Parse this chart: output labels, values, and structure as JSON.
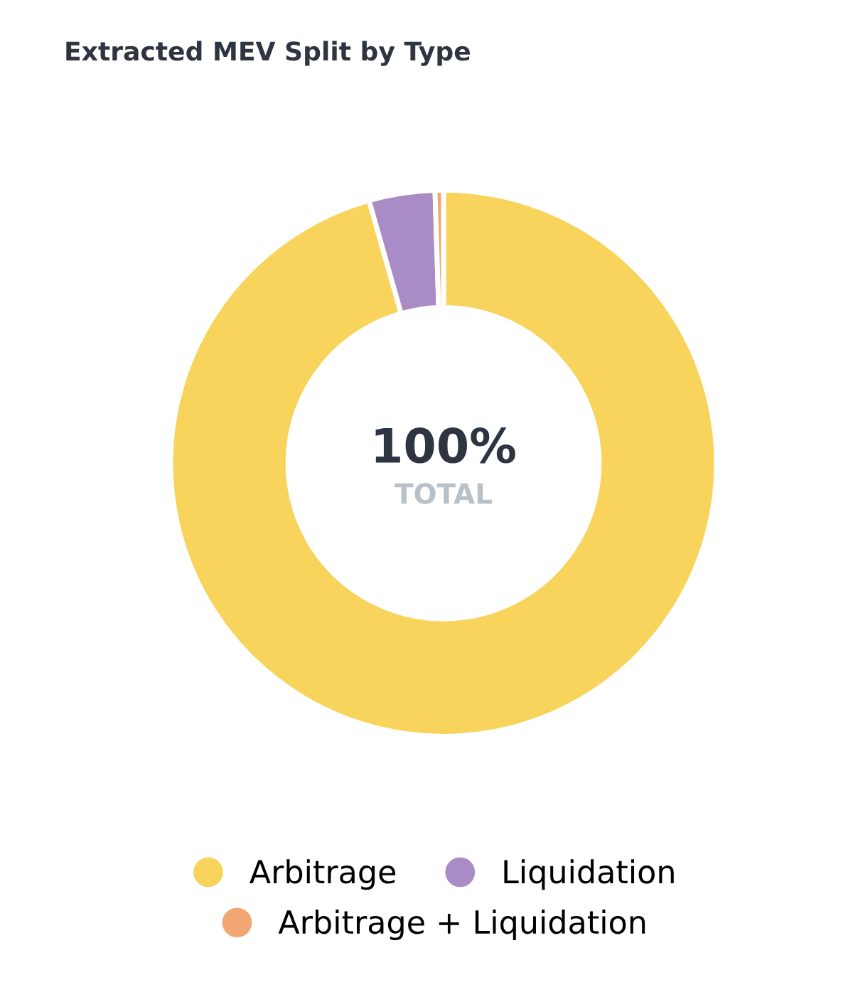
{
  "chart_data": {
    "type": "donut",
    "title": "Extracted MEV Split by Type",
    "categories": [
      "Arbitrage",
      "Liquidation",
      "Arbitrage + Liquidation"
    ],
    "values": [
      95.6,
      3.9,
      0.5
    ],
    "colors": [
      "#f8d45c",
      "#a98bc6",
      "#f2a772"
    ],
    "annotations": [
      "100%",
      "TOTAL"
    ],
    "legend": "bottom"
  }
}
